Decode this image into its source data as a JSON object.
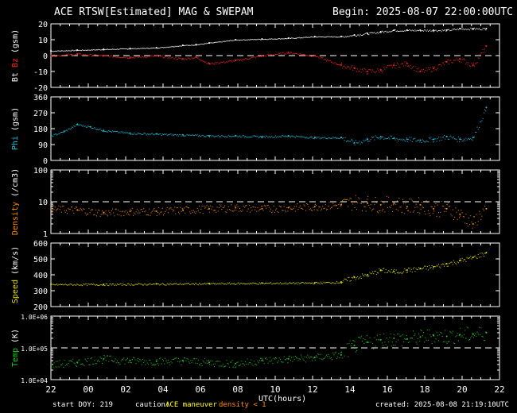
{
  "header": {
    "title": "ACE RTSW[Estimated] MAG & SWEPAM",
    "begin": "Begin: 2025-08-07 22:00:00UTC"
  },
  "footer": {
    "start_doy": "start DOY: 219",
    "caution": "caution:",
    "maneuver": "ACE maneuver",
    "density_note": "density < 1",
    "created": "created: 2025-08-08 21:19:10UTC"
  },
  "colors": {
    "bt": "#ffffff",
    "bz": "#ff2020",
    "phi": "#20c0e0",
    "density": "#ff8c00",
    "speed": "#e0e000",
    "temp": "#20d020",
    "maneuver": "#ffff00",
    "density_note": "#ff8c00"
  },
  "chart_data": {
    "type": "scatter",
    "xlabel": "UTC(hours)",
    "x_ticks": [
      "22",
      "00",
      "02",
      "04",
      "06",
      "08",
      "10",
      "12",
      "14",
      "16",
      "18",
      "20",
      "22"
    ],
    "x_range_hours": [
      0,
      24
    ],
    "panels": [
      {
        "id": "mag",
        "ylabel_parts": [
          {
            "text": "Bt",
            "color": "#ffffff"
          },
          {
            "text": " Bz",
            "color": "#ff2020"
          },
          {
            "text": "  (gsm)",
            "color": "#ffffff"
          }
        ],
        "ylim": [
          -20,
          20
        ],
        "yticks": [
          "20",
          "10",
          "0",
          "-10",
          "-20"
        ],
        "ytick_values": [
          20,
          10,
          0,
          -10,
          -20
        ],
        "ref_lines": [
          0
        ],
        "series": [
          {
            "name": "Bt",
            "color": "#ffffff",
            "points": [
              [
                0,
                3
              ],
              [
                2,
                3.5
              ],
              [
                4,
                4
              ],
              [
                6,
                4.5
              ],
              [
                8,
                5
              ],
              [
                10,
                6.5
              ],
              [
                11,
                7
              ],
              [
                12,
                8
              ],
              [
                14,
                10
              ],
              [
                16,
                10.5
              ],
              [
                18,
                11
              ],
              [
                20,
                12
              ],
              [
                22,
                12
              ],
              [
                23,
                13
              ],
              [
                24,
                14
              ],
              [
                25,
                15
              ],
              [
                26,
                16
              ],
              [
                27,
                16
              ],
              [
                28,
                16
              ],
              [
                29,
                16
              ],
              [
                30,
                16
              ],
              [
                31,
                17
              ],
              [
                32,
                17
              ],
              [
                33,
                17
              ]
            ]
          },
          {
            "name": "Bz",
            "color": "#ff2020",
            "points": [
              [
                0,
                0
              ],
              [
                2,
                1
              ],
              [
                4,
                0
              ],
              [
                6,
                -1
              ],
              [
                8,
                0
              ],
              [
                10,
                -2
              ],
              [
                11,
                -1
              ],
              [
                12,
                -5
              ],
              [
                14,
                -3
              ],
              [
                16,
                0
              ],
              [
                18,
                2
              ],
              [
                20,
                0
              ],
              [
                22,
                -6
              ],
              [
                23,
                -8
              ],
              [
                24,
                -10
              ],
              [
                25,
                -9
              ],
              [
                26,
                -6
              ],
              [
                27,
                -5
              ],
              [
                28,
                -10
              ],
              [
                29,
                -8
              ],
              [
                30,
                -4
              ],
              [
                31,
                -2
              ],
              [
                32,
                -6
              ],
              [
                33,
                6
              ]
            ]
          }
        ]
      },
      {
        "id": "phi",
        "ylabel_parts": [
          {
            "text": "Phi",
            "color": "#20c0e0"
          },
          {
            "text": " (gsm)",
            "color": "#ffffff"
          }
        ],
        "ylim": [
          0,
          360
        ],
        "yticks": [
          "360",
          "270",
          "180",
          "90",
          "0"
        ],
        "ytick_values": [
          360,
          270,
          180,
          90,
          0
        ],
        "ref_lines": [],
        "series": [
          {
            "name": "Phi",
            "color": "#20c0e0",
            "points": [
              [
                0,
                140
              ],
              [
                1,
                165
              ],
              [
                2,
                205
              ],
              [
                3,
                190
              ],
              [
                4,
                170
              ],
              [
                6,
                155
              ],
              [
                8,
                150
              ],
              [
                10,
                145
              ],
              [
                12,
                140
              ],
              [
                14,
                140
              ],
              [
                16,
                135
              ],
              [
                18,
                140
              ],
              [
                20,
                130
              ],
              [
                22,
                130
              ],
              [
                23,
                100
              ],
              [
                24,
                120
              ],
              [
                25,
                135
              ],
              [
                26,
                125
              ],
              [
                27,
                120
              ],
              [
                28,
                115
              ],
              [
                29,
                120
              ],
              [
                30,
                135
              ],
              [
                31,
                120
              ],
              [
                32,
                130
              ],
              [
                33,
                300
              ]
            ]
          }
        ]
      },
      {
        "id": "density",
        "ylabel_parts": [
          {
            "text": "Density",
            "color": "#ff8c00"
          },
          {
            "text": "  (/cm3)",
            "color": "#ffffff"
          }
        ],
        "ylim": [
          1,
          100
        ],
        "log": true,
        "yticks": [
          "100",
          "10",
          "1"
        ],
        "ytick_values": [
          100,
          10,
          1
        ],
        "ref_lines": [
          10
        ],
        "series": [
          {
            "name": "Density",
            "color": "#ff8c00",
            "points": [
              [
                0,
                6
              ],
              [
                2,
                5.5
              ],
              [
                4,
                4.5
              ],
              [
                6,
                5
              ],
              [
                8,
                5
              ],
              [
                10,
                5.5
              ],
              [
                12,
                6
              ],
              [
                14,
                6.5
              ],
              [
                16,
                6
              ],
              [
                18,
                6.5
              ],
              [
                20,
                7
              ],
              [
                22,
                8
              ],
              [
                23,
                10
              ],
              [
                24,
                9
              ],
              [
                25,
                8
              ],
              [
                26,
                9
              ],
              [
                27,
                7
              ],
              [
                28,
                8
              ],
              [
                29,
                6
              ],
              [
                30,
                6
              ],
              [
                31,
                4
              ],
              [
                32,
                2
              ],
              [
                33,
                6
              ]
            ]
          }
        ]
      },
      {
        "id": "speed",
        "ylabel_parts": [
          {
            "text": "Speed",
            "color": "#e0e000"
          },
          {
            "text": " (km/s)",
            "color": "#ffffff"
          }
        ],
        "ylim": [
          200,
          600
        ],
        "yticks": [
          "600",
          "500",
          "400",
          "300",
          "200"
        ],
        "ytick_values": [
          600,
          500,
          400,
          300,
          200
        ],
        "ref_lines": [],
        "series": [
          {
            "name": "Speed",
            "color": "#e0e000",
            "points": [
              [
                0,
                340
              ],
              [
                4,
                340
              ],
              [
                8,
                343
              ],
              [
                12,
                345
              ],
              [
                16,
                348
              ],
              [
                20,
                350
              ],
              [
                22,
                355
              ],
              [
                23,
                385
              ],
              [
                24,
                400
              ],
              [
                25,
                430
              ],
              [
                26,
                420
              ],
              [
                27,
                430
              ],
              [
                28,
                440
              ],
              [
                29,
                450
              ],
              [
                30,
                470
              ],
              [
                31,
                490
              ],
              [
                32,
                510
              ],
              [
                33,
                540
              ]
            ]
          }
        ]
      },
      {
        "id": "temp",
        "ylabel_parts": [
          {
            "text": "Temp",
            "color": "#20d020"
          },
          {
            "text": " (K)",
            "color": "#ffffff"
          }
        ],
        "ylim": [
          10000,
          1000000
        ],
        "log": true,
        "yticks": [
          "1.0E+06",
          "1.0E+05",
          "1.0E+04"
        ],
        "ytick_values": [
          1000000,
          100000,
          10000
        ],
        "ref_lines": [
          100000
        ],
        "series": [
          {
            "name": "Temp",
            "color": "#20d020",
            "points": [
              [
                0,
                30000
              ],
              [
                2,
                35000
              ],
              [
                4,
                45000
              ],
              [
                6,
                40000
              ],
              [
                8,
                38000
              ],
              [
                10,
                40000
              ],
              [
                12,
                35000
              ],
              [
                14,
                32000
              ],
              [
                16,
                40000
              ],
              [
                18,
                45000
              ],
              [
                20,
                50000
              ],
              [
                22,
                60000
              ],
              [
                23,
                120000
              ],
              [
                24,
                150000
              ],
              [
                25,
                180000
              ],
              [
                26,
                200000
              ],
              [
                27,
                190000
              ],
              [
                28,
                220000
              ],
              [
                29,
                250000
              ],
              [
                30,
                230000
              ],
              [
                31,
                260000
              ],
              [
                32,
                270000
              ],
              [
                33,
                300000
              ]
            ]
          }
        ]
      }
    ]
  }
}
